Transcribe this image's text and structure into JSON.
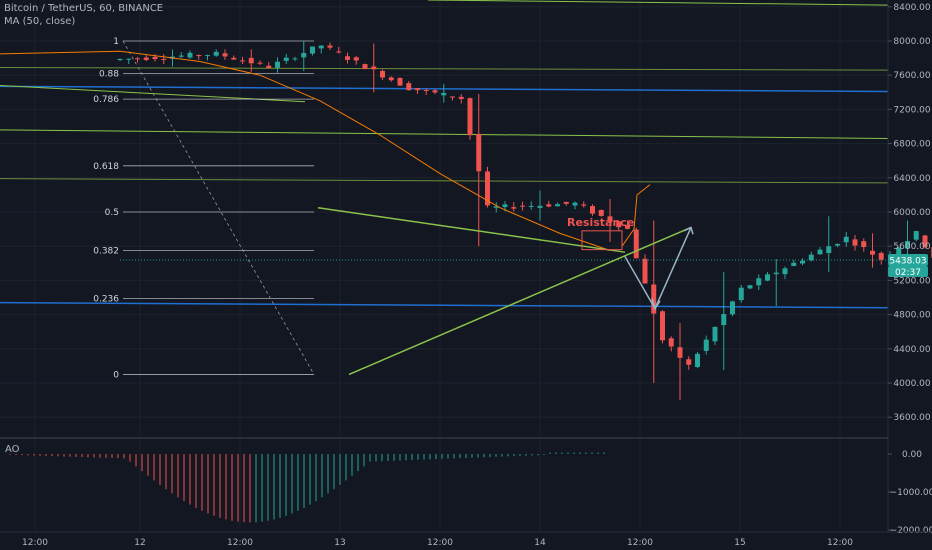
{
  "header": {
    "title": "Bitcoin / TetherUS, 60, BINANCE",
    "indicator": "MA (50, close)"
  },
  "ao_panel": {
    "label": "AO"
  },
  "price_badges": {
    "last_price": "5438.03",
    "countdown": "02:37"
  },
  "annotation": {
    "resistance": "Resistance"
  },
  "colors": {
    "background": "#131722",
    "up": "#26a69a",
    "down": "#ef5350",
    "ma": "#f57c00",
    "trend": "#8bc34a",
    "level": "#1e6fcf",
    "projection": "#9ab4c4"
  },
  "chart_data": {
    "type": "candlestick",
    "symbol": "Bitcoin / TetherUS",
    "interval": "60",
    "exchange": "BINANCE",
    "y_ticks": [
      3600,
      4000,
      4400,
      4800,
      5200,
      5600,
      6000,
      6400,
      6800,
      7200,
      7600,
      8000,
      8400
    ],
    "y_tick_labels": [
      "3600.00",
      "4000.00",
      "4400.00",
      "4800.00",
      "5200.00",
      "5600.00",
      "6000.00",
      "6400.00",
      "6800.00",
      "7200.00",
      "7600.00",
      "8000.00",
      "8400.00"
    ],
    "ylim": [
      3250,
      8500
    ],
    "x_tick_labels": [
      "12:00",
      "12",
      "12:00",
      "13",
      "12:00",
      "14",
      "12:00",
      "15",
      "12:00"
    ],
    "fib_levels": [
      {
        "label": "1",
        "price": 8000
      },
      {
        "label": "0.88",
        "price": 7620
      },
      {
        "label": "0.786",
        "price": 7320
      },
      {
        "label": "0.618",
        "price": 6540
      },
      {
        "label": "0.5",
        "price": 6000
      },
      {
        "label": "0.382",
        "price": 5550
      },
      {
        "label": "0.236",
        "price": 4990
      },
      {
        "label": "0",
        "price": 4100
      }
    ],
    "last_price": 5438.03,
    "ao_ticks": [
      0,
      -1000,
      -2000
    ],
    "ao_tick_labels": [
      "0.00",
      "−1000.00",
      "−2000.00"
    ]
  }
}
